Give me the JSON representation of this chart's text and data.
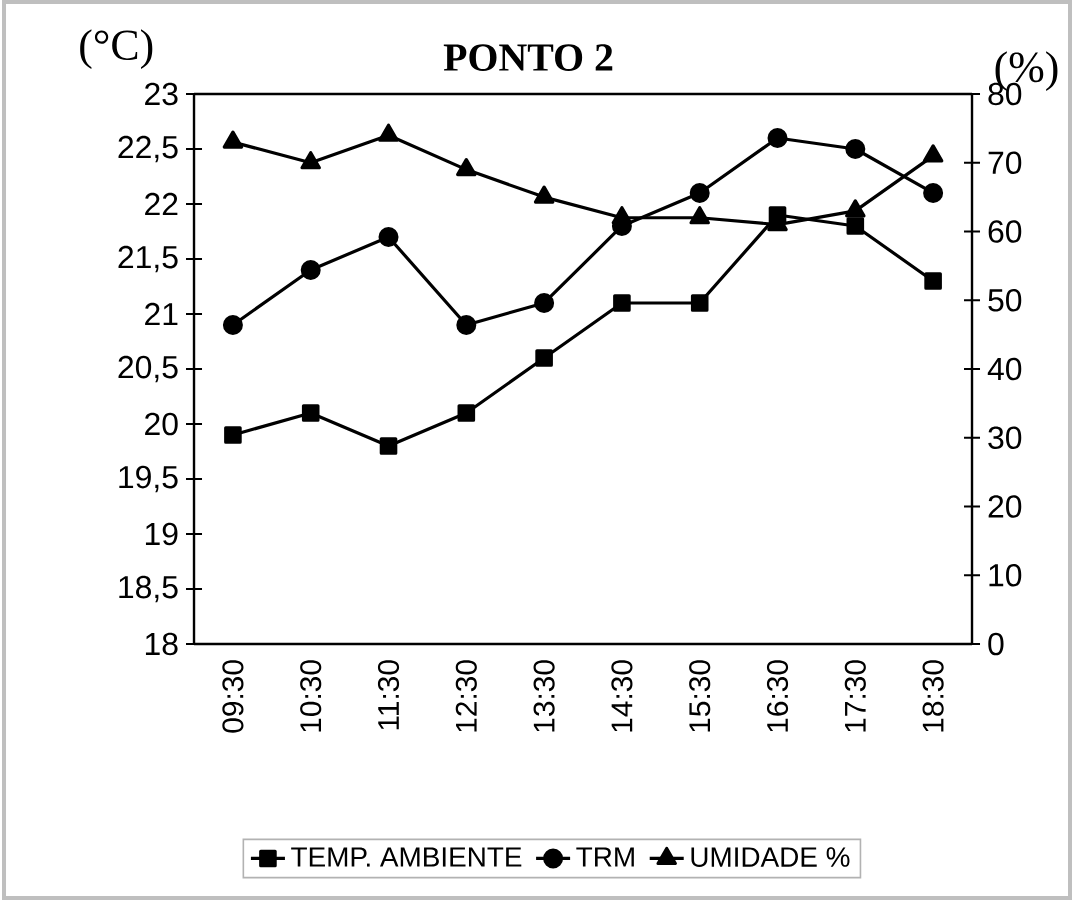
{
  "chart_data": {
    "type": "line",
    "title": "PONTO 2",
    "ylabel": "(°C)",
    "y2label": "(%)",
    "categories": [
      "09:30",
      "10:30",
      "11:30",
      "12:30",
      "13:30",
      "14:30",
      "15:30",
      "16:30",
      "17:30",
      "18:30"
    ],
    "series": [
      {
        "name": "TEMP. AMBIENTE",
        "color": "#000000",
        "marker": "square",
        "values": [
          19.9,
          20.1,
          19.8,
          20.1,
          20.6,
          21.1,
          21.1,
          21.9,
          21.8,
          21.3
        ]
      },
      {
        "name": "TRM",
        "color": "#000000",
        "marker": "circle",
        "values": [
          20.9,
          21.4,
          21.7,
          20.9,
          21.1,
          21.8,
          22.1,
          22.6,
          22.5,
          22.1
        ]
      },
      {
        "name": "UMIDADE %",
        "color": "#000000",
        "marker": "triangle",
        "axis": "y2",
        "values": [
          73,
          70,
          74,
          69,
          65,
          62,
          62,
          61,
          63,
          71
        ]
      }
    ],
    "ylim": [
      18,
      23
    ],
    "yticks": [
      18,
      {
        "value": 18.5,
        "label": "18,5"
      },
      19,
      {
        "value": 19.5,
        "label": "19,5"
      },
      20,
      {
        "value": 20.5,
        "label": "20,5"
      },
      21,
      {
        "value": 21.5,
        "label": "21,5"
      },
      22,
      {
        "value": 22.5,
        "label": "22,5"
      },
      23
    ],
    "y2lim": [
      0,
      80
    ],
    "y2ticks": [
      0,
      10,
      20,
      30,
      40,
      50,
      60,
      70,
      80
    ],
    "legend": "bottom",
    "line_style": "solid"
  }
}
